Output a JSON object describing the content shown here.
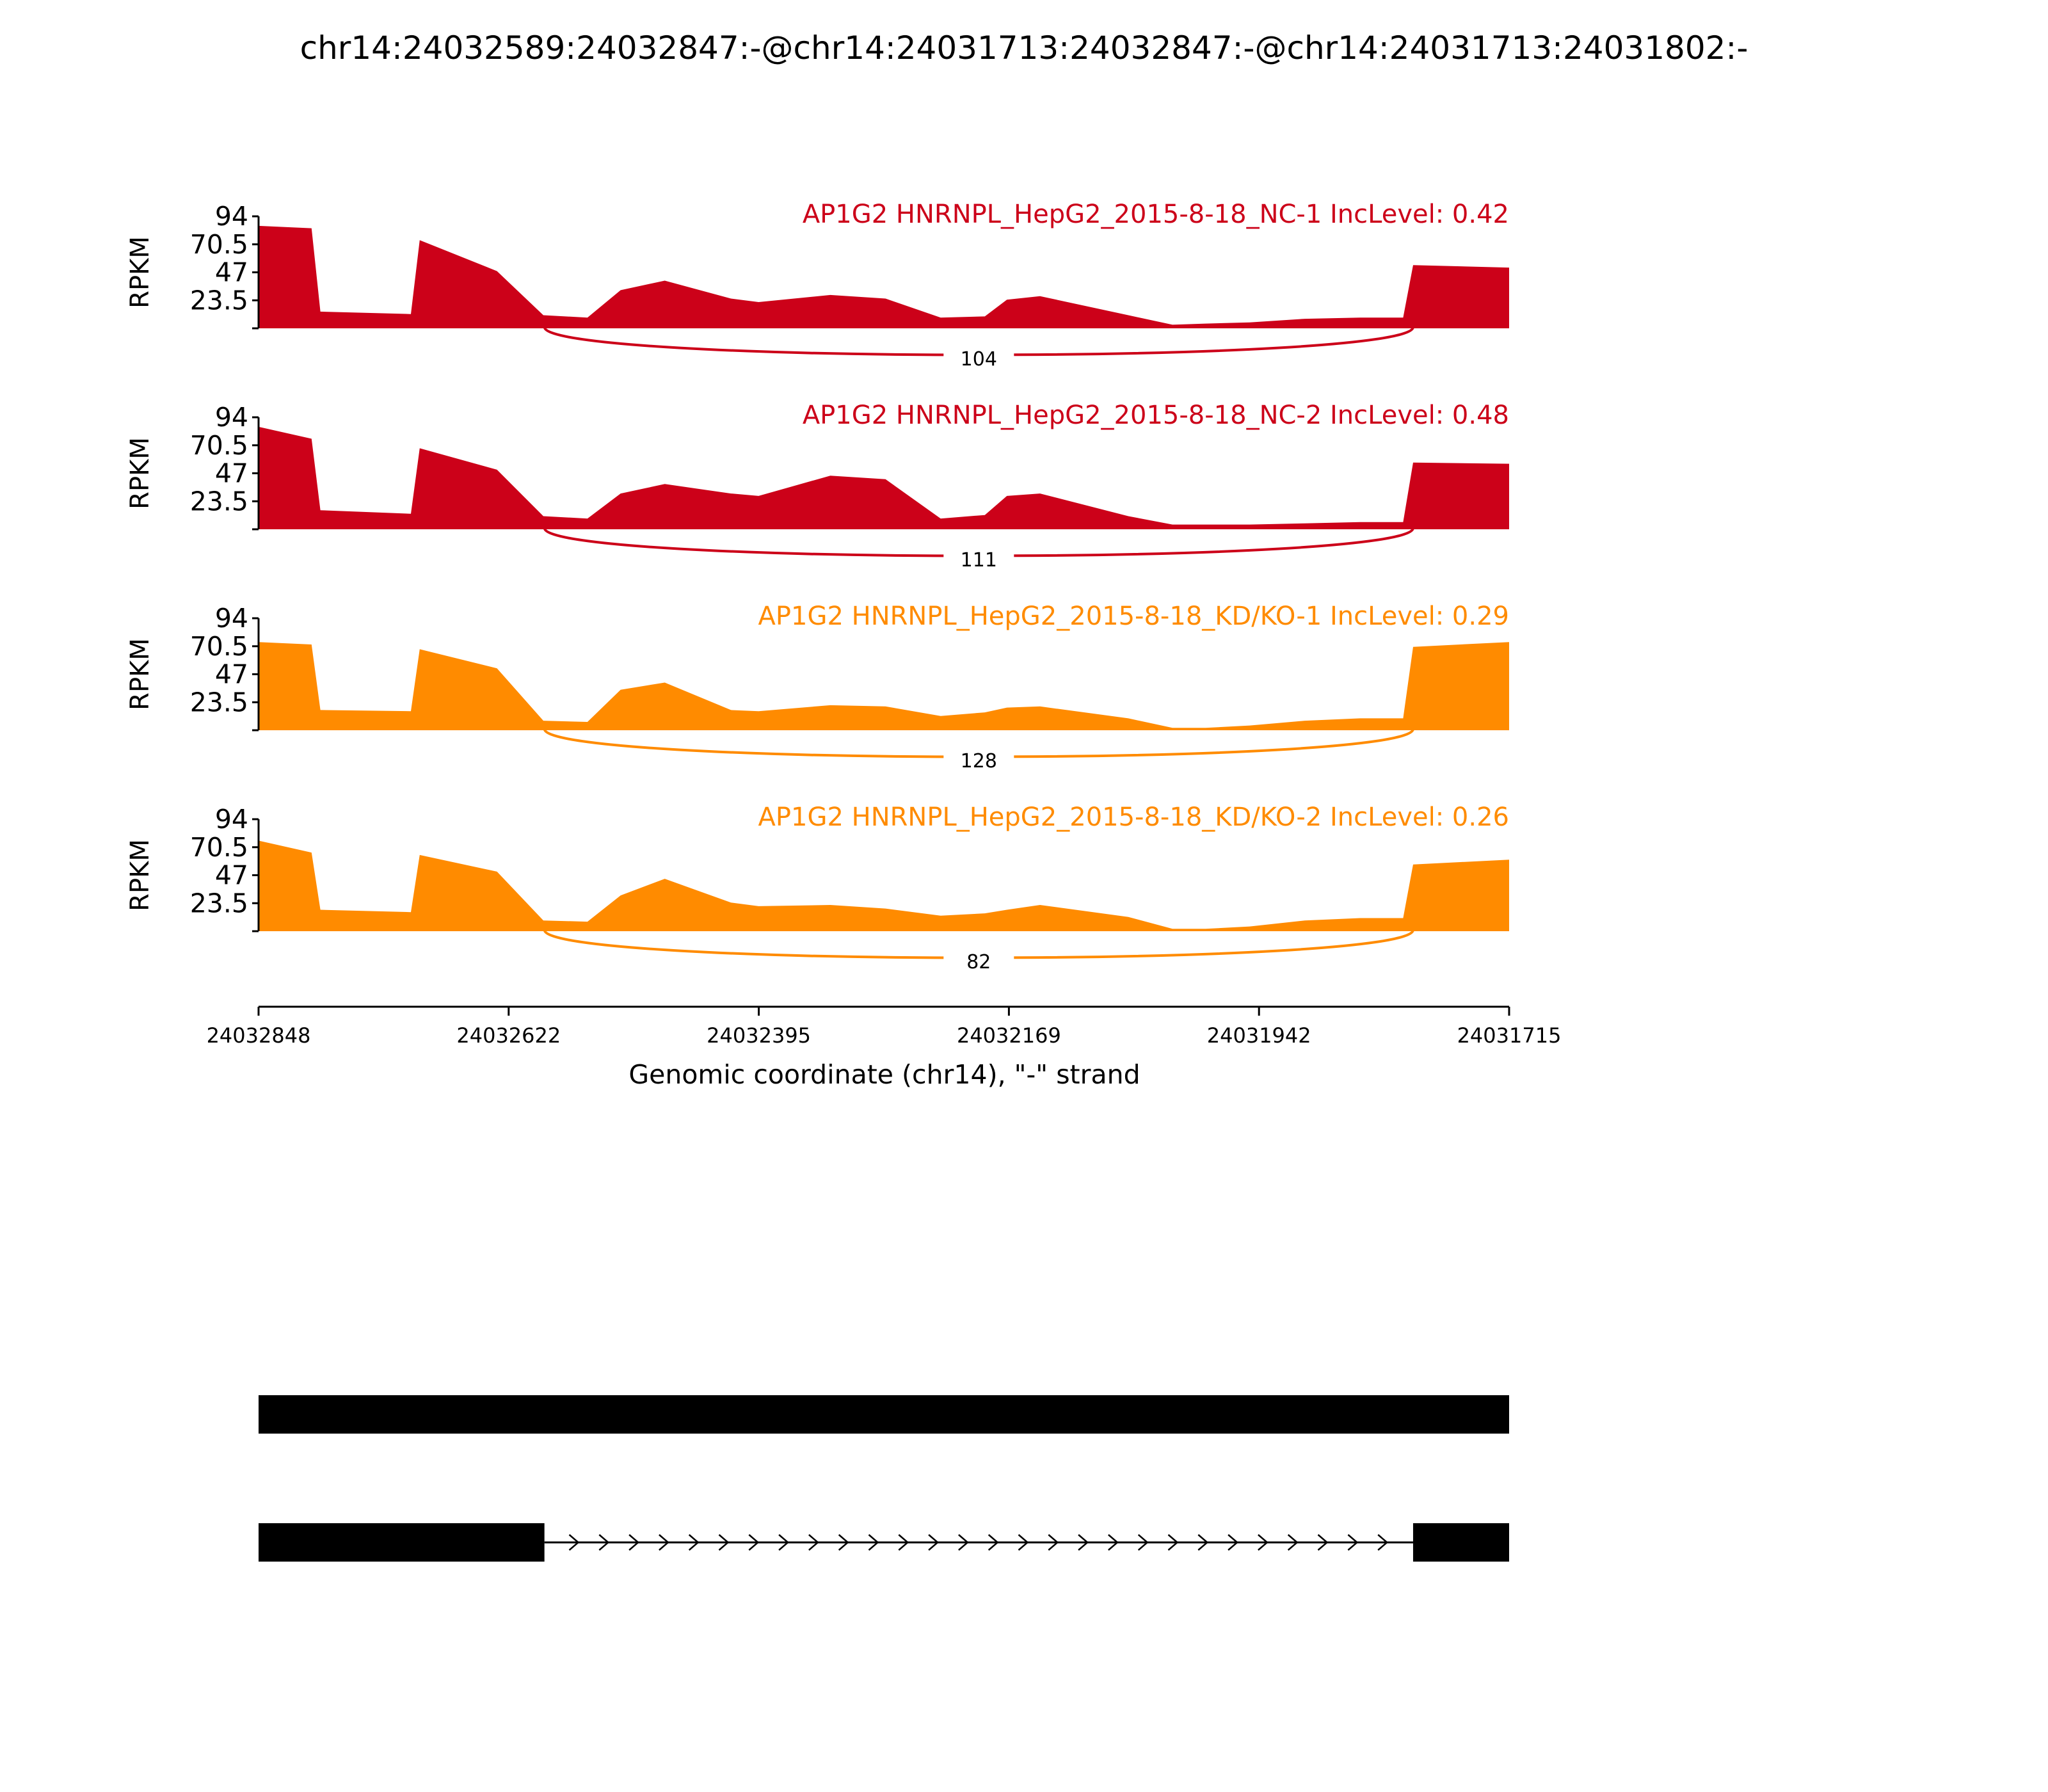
{
  "title": "chr14:24032589:24032847:-@chr14:24031713:24032847:-@chr14:24031713:24031802:-",
  "colors": {
    "nc": "#cc0119",
    "kd": "#ff8b00",
    "axis": "#000000",
    "gene": "#000000"
  },
  "chart_data": {
    "type": "area",
    "ylabel": "RPKM",
    "yticks": [
      23.5,
      47,
      70.5,
      94
    ],
    "ylim": [
      0,
      94
    ],
    "xlabel": "Genomic coordinate (chr14), \"-\" strand",
    "xticks": [
      "24032848",
      "24032622",
      "24032395",
      "24032169",
      "24031942",
      "24031715"
    ],
    "xlim": [
      24032848,
      24031715
    ],
    "x": [
      24032848,
      24032800,
      24032792,
      24032710,
      24032702,
      24032632,
      24032590,
      24032550,
      24032520,
      24032480,
      24032420,
      24032395,
      24032330,
      24032280,
      24032230,
      24032190,
      24032170,
      24032140,
      24032060,
      24032020,
      24031990,
      24031950,
      24031900,
      24031850,
      24031811,
      24031802,
      24031715
    ],
    "series": [
      {
        "name": "AP1G2 HNRNPL_HepG2_2015-8-18_NC-1 IncLevel: 0.42",
        "group": "nc",
        "values": [
          86,
          84,
          14,
          12,
          74,
          48,
          11,
          9,
          32,
          40,
          25,
          22,
          28,
          25,
          9,
          10,
          24,
          27,
          11,
          3,
          4,
          5,
          8,
          9,
          9,
          53,
          51
        ],
        "junction": {
          "start": 24032589,
          "end": 24031802,
          "count": "104"
        }
      },
      {
        "name": "AP1G2 HNRNPL_HepG2_2015-8-18_NC-2 IncLevel: 0.48",
        "group": "nc",
        "values": [
          86,
          76,
          16,
          13,
          68,
          50,
          11,
          9,
          30,
          38,
          30,
          28,
          45,
          42,
          9,
          12,
          28,
          30,
          11,
          4,
          4,
          4,
          5,
          6,
          6,
          56,
          55
        ],
        "junction": {
          "start": 24032589,
          "end": 24031802,
          "count": "111"
        }
      },
      {
        "name": "AP1G2 HNRNPL_HepG2_2015-8-18_KD/KO-1 IncLevel: 0.29",
        "group": "kd",
        "values": [
          74,
          72,
          17,
          16,
          68,
          52,
          8,
          7,
          34,
          40,
          17,
          16,
          21,
          20,
          12,
          15,
          19,
          20,
          10,
          2,
          2,
          4,
          8,
          10,
          10,
          70,
          74
        ],
        "junction": {
          "start": 24032589,
          "end": 24031802,
          "count": "128"
        }
      },
      {
        "name": "AP1G2 HNRNPL_HepG2_2015-8-18_KD/KO-2 IncLevel: 0.26",
        "group": "kd",
        "values": [
          76,
          66,
          18,
          16,
          64,
          50,
          9,
          8,
          30,
          44,
          24,
          21,
          22,
          19,
          13,
          15,
          18,
          22,
          12,
          2,
          2,
          4,
          9,
          11,
          11,
          56,
          60
        ],
        "junction": {
          "start": 24032589,
          "end": 24031802,
          "count": "82"
        }
      }
    ]
  },
  "gene_model": {
    "exon_a": {
      "start": 24032847,
      "end": 24032589
    },
    "exon_c": {
      "start": 24031802,
      "end": 24031713
    }
  }
}
